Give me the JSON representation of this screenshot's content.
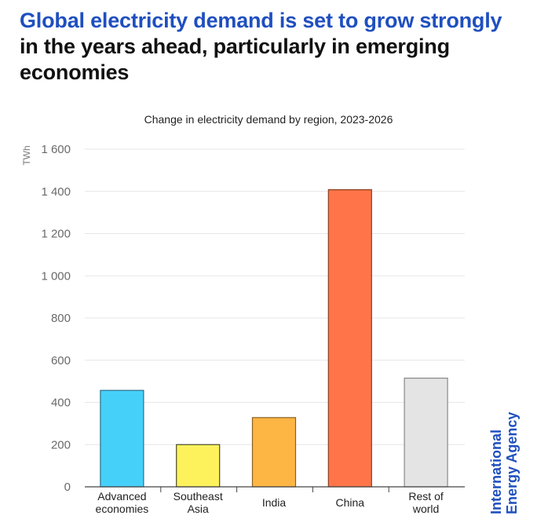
{
  "headline": {
    "accent_text": "Global electricity demand is set to grow strongly",
    "rest_text": " in the years ahead, particularly in emerging economies"
  },
  "brand": {
    "line1": "International",
    "line2": "Energy Agency"
  },
  "colors": {
    "accent": "#1f4fbf",
    "gridline": "#e6e6e6",
    "axis": "#444444"
  },
  "chart_data": {
    "type": "bar",
    "title": "Change in electricity demand by region, 2023-2026",
    "xlabel": "",
    "ylabel": "TWh",
    "ylim": [
      0,
      1600
    ],
    "yticks": [
      0,
      200,
      400,
      600,
      800,
      1000,
      1200,
      1400,
      1600
    ],
    "ytick_labels": [
      "0",
      "200",
      "400",
      "600",
      "800",
      "1 000",
      "1 200",
      "1 400",
      "1 600"
    ],
    "grid": true,
    "categories": [
      {
        "lines": [
          "Advanced",
          "economies"
        ]
      },
      {
        "lines": [
          "Southeast",
          "Asia"
        ]
      },
      {
        "lines": [
          "India"
        ]
      },
      {
        "lines": [
          "China"
        ]
      },
      {
        "lines": [
          "Rest of",
          "world"
        ]
      }
    ],
    "category_names": [
      "Advanced economies",
      "Southeast Asia",
      "India",
      "China",
      "Rest of world"
    ],
    "values": [
      457,
      200,
      328,
      1408,
      515
    ],
    "bar_colors": [
      "#45d0fa",
      "#fdf25c",
      "#fdb544",
      "#ff7549",
      "#e4e4e4"
    ],
    "bar_edge_colors": [
      "#2a6e88",
      "#4a4a2a",
      "#8a6020",
      "#8a3e22",
      "#888888"
    ]
  }
}
